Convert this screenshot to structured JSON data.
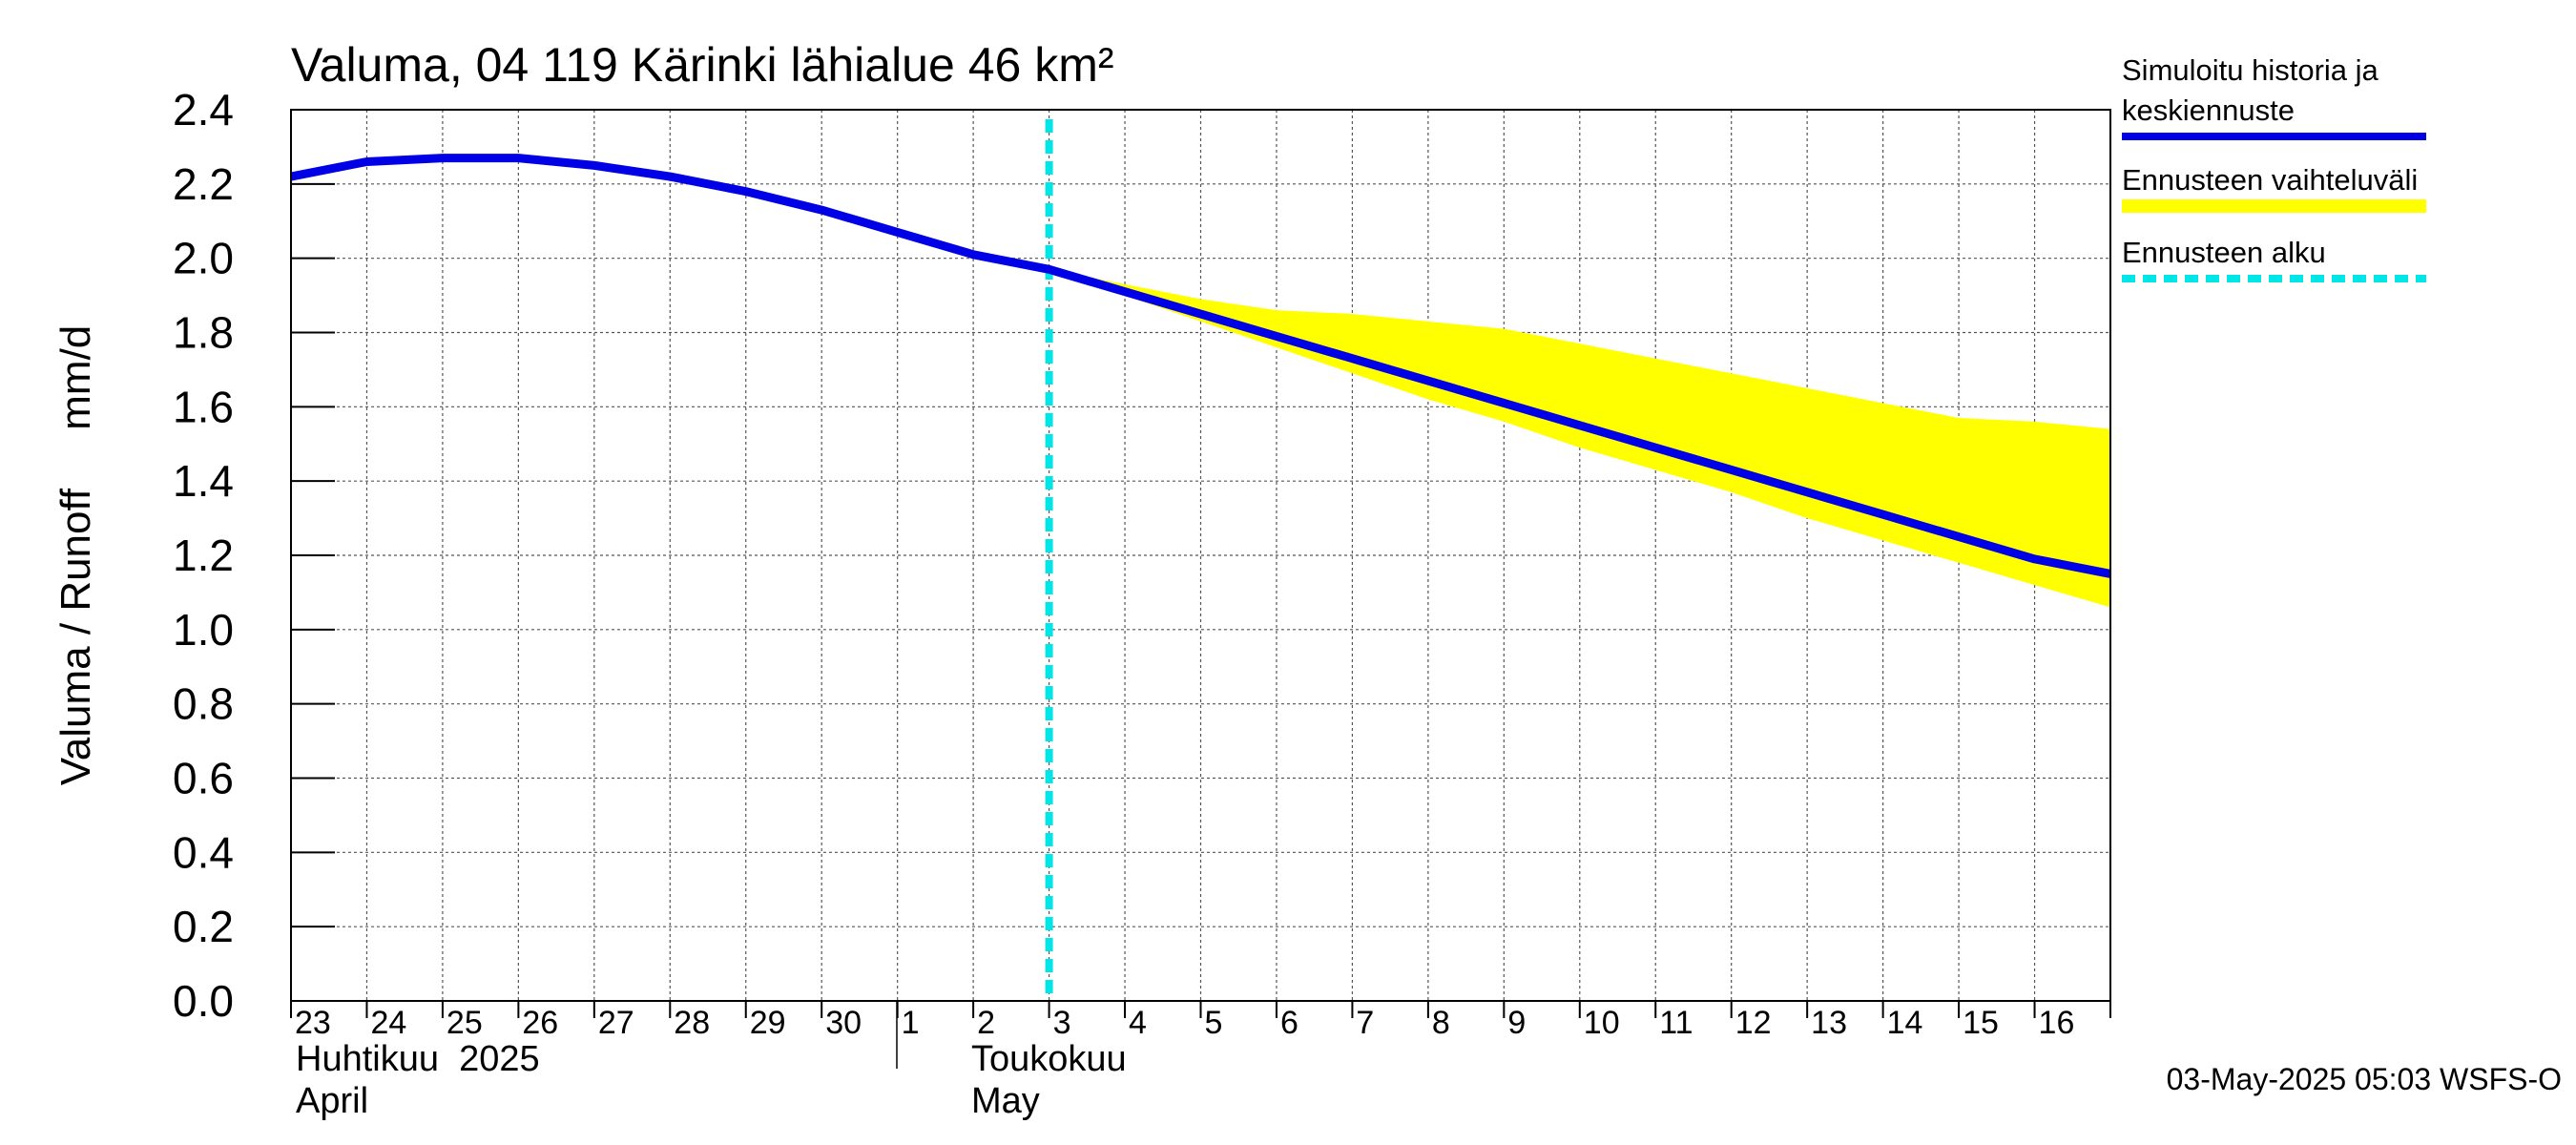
{
  "chart_data": {
    "type": "line",
    "title": "Valuma, 04 119 Kärinki lähialue 46 km²",
    "ylabel": "Valuma / Runoff     mm/d",
    "ylim": [
      0.0,
      2.4
    ],
    "y_ticks": [
      "0.0",
      "0.2",
      "0.4",
      "0.6",
      "0.8",
      "1.0",
      "1.2",
      "1.4",
      "1.6",
      "1.8",
      "2.0",
      "2.2",
      "2.4"
    ],
    "x_range_days": [
      0,
      24
    ],
    "day_labels": [
      "23",
      "24",
      "25",
      "26",
      "27",
      "28",
      "29",
      "30",
      "1",
      "2",
      "3",
      "4",
      "5",
      "6",
      "7",
      "8",
      "9",
      "10",
      "11",
      "12",
      "13",
      "14",
      "15",
      "16"
    ],
    "month_labels": {
      "april_fi": "Huhtikuu  2025",
      "april_en": "April",
      "may_fi": "Toukokuu",
      "may_en": "May"
    },
    "forecast_start_day": 10.0,
    "series": [
      {
        "name": "Simuloitu historia ja keskiennuste",
        "color": "#0000e6",
        "x": [
          0,
          1,
          2,
          3,
          4,
          5,
          6,
          7,
          8,
          9,
          10,
          11,
          12,
          13,
          14,
          15,
          16,
          17,
          18,
          19,
          20,
          21,
          22,
          23,
          24
        ],
        "values": [
          2.22,
          2.26,
          2.27,
          2.27,
          2.25,
          2.22,
          2.18,
          2.13,
          2.07,
          2.01,
          1.97,
          1.91,
          1.85,
          1.79,
          1.73,
          1.67,
          1.61,
          1.55,
          1.49,
          1.43,
          1.37,
          1.31,
          1.25,
          1.19,
          1.15
        ]
      }
    ],
    "band": {
      "name": "Ennusteen vaihteluväli",
      "color": "#ffff00",
      "x": [
        10,
        11,
        12,
        13,
        14,
        15,
        16,
        17,
        18,
        19,
        20,
        21,
        22,
        23,
        24
      ],
      "upper": [
        1.97,
        1.93,
        1.89,
        1.86,
        1.85,
        1.83,
        1.81,
        1.77,
        1.73,
        1.69,
        1.65,
        1.61,
        1.57,
        1.56,
        1.54
      ],
      "lower": [
        1.97,
        1.9,
        1.83,
        1.76,
        1.69,
        1.62,
        1.56,
        1.49,
        1.43,
        1.37,
        1.3,
        1.24,
        1.18,
        1.12,
        1.06
      ]
    },
    "legend": {
      "position": "top-right",
      "entries": [
        {
          "label_line1": "Simuloitu historia ja",
          "label_line2": "keskiennuste",
          "color": "#0000e6",
          "style": "solid"
        },
        {
          "label_line1": "Ennusteen vaihteluväli",
          "label_line2": "",
          "color": "#ffff00",
          "style": "band"
        },
        {
          "label_line1": "Ennusteen alku",
          "label_line2": "",
          "color": "#00e5e5",
          "style": "dashed"
        }
      ]
    },
    "forecast_line_color": "#00e5e5",
    "grid": true
  },
  "footer": {
    "timestamp": "03-May-2025 05:03 WSFS-O"
  }
}
